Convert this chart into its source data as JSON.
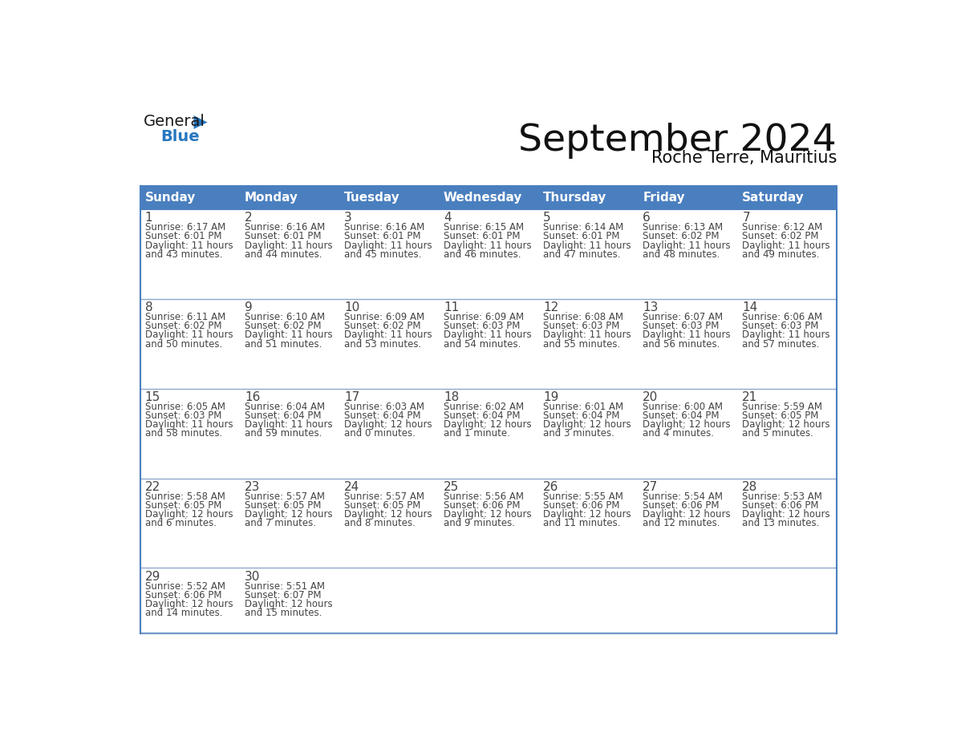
{
  "title": "September 2024",
  "subtitle": "Roche Terre, Mauritius",
  "header_color": "#4a7fbf",
  "header_text_color": "#FFFFFF",
  "day_names": [
    "Sunday",
    "Monday",
    "Tuesday",
    "Wednesday",
    "Thursday",
    "Friday",
    "Saturday"
  ],
  "background_color": "#FFFFFF",
  "cell_text_color": "#444444",
  "grid_color": "#4a7fbf",
  "line_color": "#8ea8cc",
  "logo_general_color": "#1a1a1a",
  "logo_blue_color": "#2878C0",
  "calendar_data": [
    [
      {
        "day": "1",
        "sunrise": "6:17 AM",
        "sunset": "6:01 PM",
        "dl1": "Daylight: 11 hours",
        "dl2": "and 43 minutes."
      },
      {
        "day": "2",
        "sunrise": "6:16 AM",
        "sunset": "6:01 PM",
        "dl1": "Daylight: 11 hours",
        "dl2": "and 44 minutes."
      },
      {
        "day": "3",
        "sunrise": "6:16 AM",
        "sunset": "6:01 PM",
        "dl1": "Daylight: 11 hours",
        "dl2": "and 45 minutes."
      },
      {
        "day": "4",
        "sunrise": "6:15 AM",
        "sunset": "6:01 PM",
        "dl1": "Daylight: 11 hours",
        "dl2": "and 46 minutes."
      },
      {
        "day": "5",
        "sunrise": "6:14 AM",
        "sunset": "6:01 PM",
        "dl1": "Daylight: 11 hours",
        "dl2": "and 47 minutes."
      },
      {
        "day": "6",
        "sunrise": "6:13 AM",
        "sunset": "6:02 PM",
        "dl1": "Daylight: 11 hours",
        "dl2": "and 48 minutes."
      },
      {
        "day": "7",
        "sunrise": "6:12 AM",
        "sunset": "6:02 PM",
        "dl1": "Daylight: 11 hours",
        "dl2": "and 49 minutes."
      }
    ],
    [
      {
        "day": "8",
        "sunrise": "6:11 AM",
        "sunset": "6:02 PM",
        "dl1": "Daylight: 11 hours",
        "dl2": "and 50 minutes."
      },
      {
        "day": "9",
        "sunrise": "6:10 AM",
        "sunset": "6:02 PM",
        "dl1": "Daylight: 11 hours",
        "dl2": "and 51 minutes."
      },
      {
        "day": "10",
        "sunrise": "6:09 AM",
        "sunset": "6:02 PM",
        "dl1": "Daylight: 11 hours",
        "dl2": "and 53 minutes."
      },
      {
        "day": "11",
        "sunrise": "6:09 AM",
        "sunset": "6:03 PM",
        "dl1": "Daylight: 11 hours",
        "dl2": "and 54 minutes."
      },
      {
        "day": "12",
        "sunrise": "6:08 AM",
        "sunset": "6:03 PM",
        "dl1": "Daylight: 11 hours",
        "dl2": "and 55 minutes."
      },
      {
        "day": "13",
        "sunrise": "6:07 AM",
        "sunset": "6:03 PM",
        "dl1": "Daylight: 11 hours",
        "dl2": "and 56 minutes."
      },
      {
        "day": "14",
        "sunrise": "6:06 AM",
        "sunset": "6:03 PM",
        "dl1": "Daylight: 11 hours",
        "dl2": "and 57 minutes."
      }
    ],
    [
      {
        "day": "15",
        "sunrise": "6:05 AM",
        "sunset": "6:03 PM",
        "dl1": "Daylight: 11 hours",
        "dl2": "and 58 minutes."
      },
      {
        "day": "16",
        "sunrise": "6:04 AM",
        "sunset": "6:04 PM",
        "dl1": "Daylight: 11 hours",
        "dl2": "and 59 minutes."
      },
      {
        "day": "17",
        "sunrise": "6:03 AM",
        "sunset": "6:04 PM",
        "dl1": "Daylight: 12 hours",
        "dl2": "and 0 minutes."
      },
      {
        "day": "18",
        "sunrise": "6:02 AM",
        "sunset": "6:04 PM",
        "dl1": "Daylight: 12 hours",
        "dl2": "and 1 minute."
      },
      {
        "day": "19",
        "sunrise": "6:01 AM",
        "sunset": "6:04 PM",
        "dl1": "Daylight: 12 hours",
        "dl2": "and 3 minutes."
      },
      {
        "day": "20",
        "sunrise": "6:00 AM",
        "sunset": "6:04 PM",
        "dl1": "Daylight: 12 hours",
        "dl2": "and 4 minutes."
      },
      {
        "day": "21",
        "sunrise": "5:59 AM",
        "sunset": "6:05 PM",
        "dl1": "Daylight: 12 hours",
        "dl2": "and 5 minutes."
      }
    ],
    [
      {
        "day": "22",
        "sunrise": "5:58 AM",
        "sunset": "6:05 PM",
        "dl1": "Daylight: 12 hours",
        "dl2": "and 6 minutes."
      },
      {
        "day": "23",
        "sunrise": "5:57 AM",
        "sunset": "6:05 PM",
        "dl1": "Daylight: 12 hours",
        "dl2": "and 7 minutes."
      },
      {
        "day": "24",
        "sunrise": "5:57 AM",
        "sunset": "6:05 PM",
        "dl1": "Daylight: 12 hours",
        "dl2": "and 8 minutes."
      },
      {
        "day": "25",
        "sunrise": "5:56 AM",
        "sunset": "6:06 PM",
        "dl1": "Daylight: 12 hours",
        "dl2": "and 9 minutes."
      },
      {
        "day": "26",
        "sunrise": "5:55 AM",
        "sunset": "6:06 PM",
        "dl1": "Daylight: 12 hours",
        "dl2": "and 11 minutes."
      },
      {
        "day": "27",
        "sunrise": "5:54 AM",
        "sunset": "6:06 PM",
        "dl1": "Daylight: 12 hours",
        "dl2": "and 12 minutes."
      },
      {
        "day": "28",
        "sunrise": "5:53 AM",
        "sunset": "6:06 PM",
        "dl1": "Daylight: 12 hours",
        "dl2": "and 13 minutes."
      }
    ],
    [
      {
        "day": "29",
        "sunrise": "5:52 AM",
        "sunset": "6:06 PM",
        "dl1": "Daylight: 12 hours",
        "dl2": "and 14 minutes."
      },
      {
        "day": "30",
        "sunrise": "5:51 AM",
        "sunset": "6:07 PM",
        "dl1": "Daylight: 12 hours",
        "dl2": "and 15 minutes."
      },
      null,
      null,
      null,
      null,
      null
    ]
  ],
  "title_fontsize": 34,
  "subtitle_fontsize": 15,
  "dayname_fontsize": 11,
  "daynum_fontsize": 11,
  "cell_fontsize": 8.5
}
